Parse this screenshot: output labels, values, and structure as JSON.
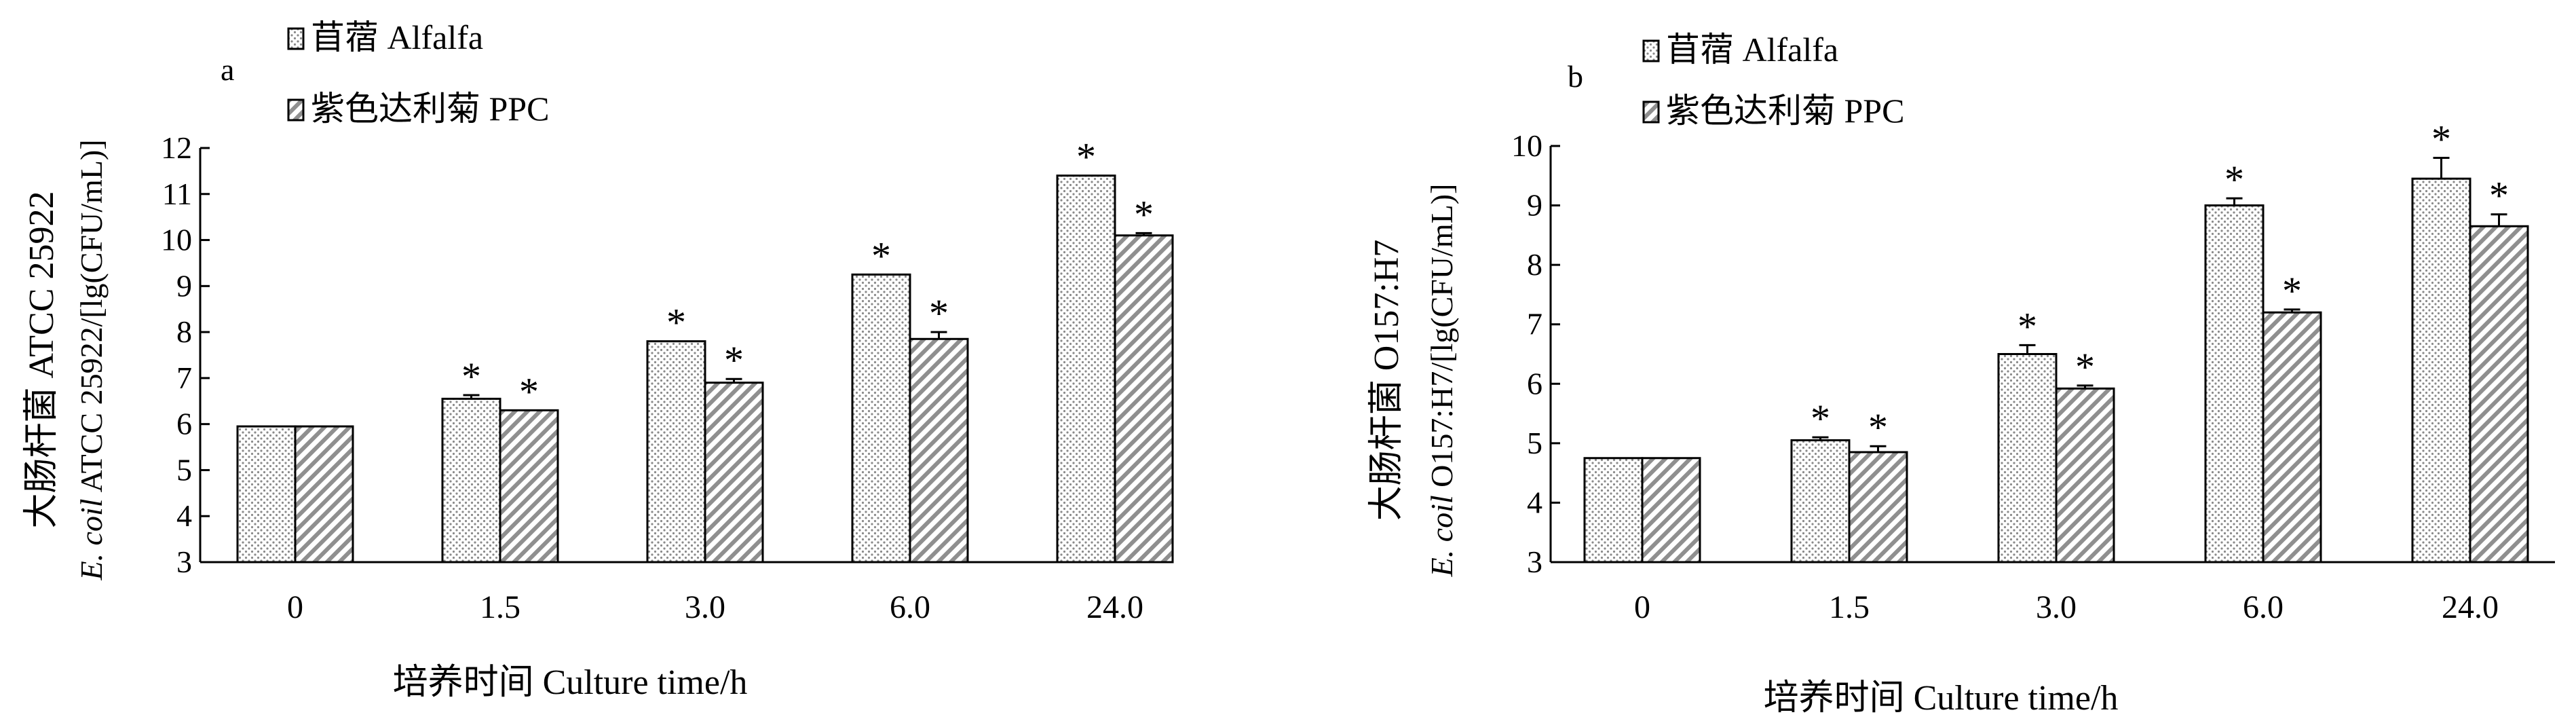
{
  "figure": {
    "series_names": [
      "苜蓿 Alfalfa",
      "紫色达利菊 PPC"
    ],
    "series_colors": [
      "#ffffff",
      "#ffffff"
    ],
    "series_patterns": [
      "dots",
      "diagonal-hatch"
    ],
    "significance_marker": "*",
    "xlabel": "培养时间 Culture time/h"
  },
  "chart_data": [
    {
      "type": "bar",
      "panel_label": "a",
      "categories": [
        "0",
        "1.5",
        "3.0",
        "6.0",
        "24.0"
      ],
      "series": [
        {
          "name": "苜蓿 Alfalfa",
          "values": [
            5.95,
            6.55,
            7.8,
            9.25,
            11.4
          ],
          "errors": [
            0,
            0.08,
            0,
            0,
            0
          ],
          "significant": [
            false,
            true,
            true,
            true,
            true
          ]
        },
        {
          "name": "紫色达利菊 PPC",
          "values": [
            5.95,
            6.3,
            6.9,
            7.85,
            10.1
          ],
          "errors": [
            0,
            0,
            0.08,
            0.15,
            0.05
          ],
          "significant": [
            false,
            true,
            true,
            true,
            true
          ]
        }
      ],
      "xlabel": "培养时间 Culture time/h",
      "ylabel_cn": "大肠杆菌 ATCC 25922",
      "ylabel_en_italic": "E. coil",
      "ylabel_en": " ATCC 25922/[lg(CFU/mL)]",
      "ylim": [
        3,
        12
      ],
      "yticks": [
        3,
        4,
        5,
        6,
        7,
        8,
        9,
        10,
        11,
        12
      ],
      "legend_position": "top-left"
    },
    {
      "type": "bar",
      "panel_label": "b",
      "categories": [
        "0",
        "1.5",
        "3.0",
        "6.0",
        "24.0"
      ],
      "series": [
        {
          "name": "苜蓿 Alfalfa",
          "values": [
            4.75,
            5.05,
            6.5,
            9.0,
            9.45
          ],
          "errors": [
            0,
            0.05,
            0.15,
            0.12,
            0.35
          ],
          "significant": [
            false,
            true,
            true,
            true,
            true
          ]
        },
        {
          "name": "紫色达利菊 PPC",
          "values": [
            4.75,
            4.85,
            5.92,
            7.2,
            8.65
          ],
          "errors": [
            0,
            0.1,
            0.05,
            0.05,
            0.2
          ],
          "significant": [
            false,
            true,
            true,
            true,
            true
          ]
        }
      ],
      "xlabel": "培养时间 Culture time/h",
      "ylabel_cn": "大肠杆菌 O157:H7",
      "ylabel_en_italic": "E. coil",
      "ylabel_en": " O157:H7/[lg(CFU/mL)]",
      "ylim": [
        3,
        10
      ],
      "yticks": [
        3,
        4,
        5,
        6,
        7,
        8,
        9,
        10
      ],
      "legend_position": "top-left"
    }
  ]
}
